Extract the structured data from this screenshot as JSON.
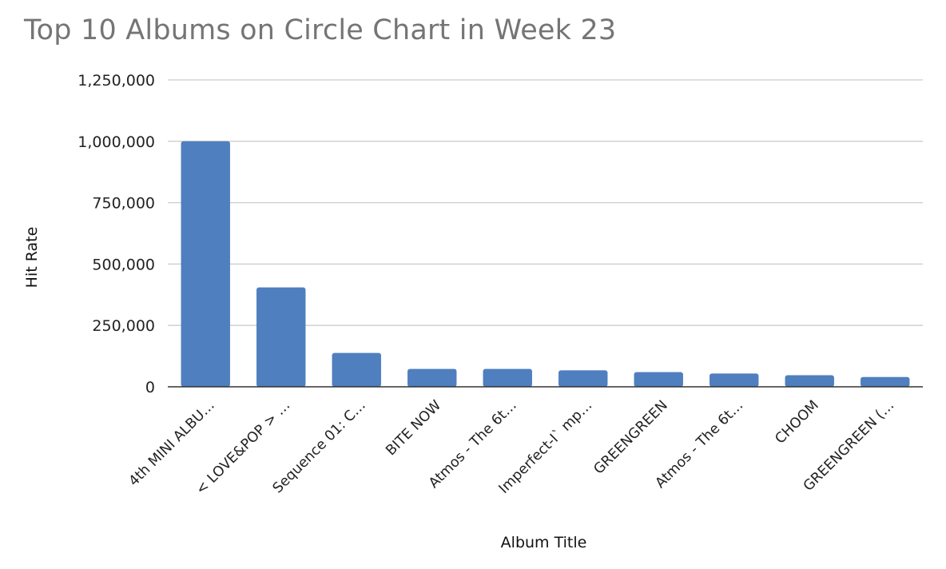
{
  "chart_data": {
    "type": "bar",
    "title": "Top 10 Albums on Circle Chart in Week 23",
    "xlabel": "Album Title",
    "ylabel": "Hit Rate",
    "ylim": [
      0,
      1250000
    ],
    "yticks": [
      0,
      250000,
      500000,
      750000,
      1000000,
      1250000
    ],
    "ytick_labels": [
      "0",
      "250,000",
      "500,000",
      "750,000",
      "1,000,000",
      "1,250,000"
    ],
    "categories": [
      "4th MINI ALBU…",
      "< LOVE&POP > …",
      "Sequence 01: C…",
      "BITE NOW",
      "Atmos - The 6t…",
      "Imperfect-I` mp…",
      "GREENGREEN",
      "Atmos - The 6t…",
      "CHOOM",
      "GREENGREEN (…"
    ],
    "values": [
      1000000,
      405000,
      138000,
      73000,
      73000,
      67000,
      60000,
      54000,
      47000,
      40000
    ],
    "grid": true,
    "legend": "none",
    "bar_color": "#4f7fbf"
  }
}
